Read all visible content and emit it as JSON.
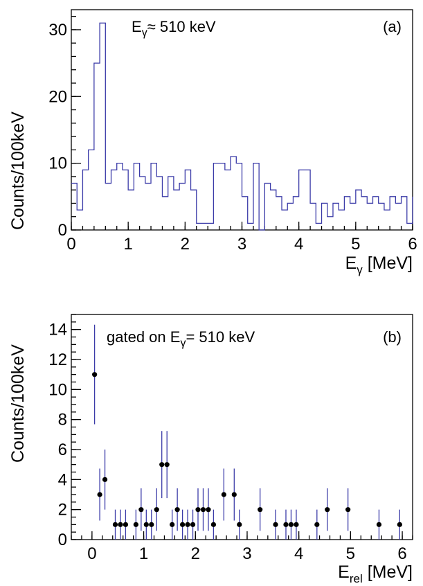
{
  "chart_data": [
    {
      "panel": "a",
      "type": "step",
      "panel_label": "(a)",
      "annotation": {
        "prefix": "E",
        "sub": "γ",
        "suffix": "≈ 510 keV"
      },
      "xlabel": {
        "main": "E",
        "sub": "γ",
        "unit": " [MeV]"
      },
      "ylabel": "Counts/100keV",
      "xlim": [
        0,
        6
      ],
      "ylim": [
        0,
        33
      ],
      "xticks": [
        "0",
        "1",
        "2",
        "3",
        "4",
        "5",
        "6"
      ],
      "yticks": [
        "0",
        "10",
        "20",
        "30"
      ],
      "grid": false,
      "bin_width": 0.1,
      "bin_start": 0.0,
      "values": [
        7,
        3,
        9,
        12,
        25,
        31,
        7,
        9,
        10,
        9,
        6,
        10,
        8,
        7,
        10,
        8,
        5,
        8,
        6,
        7,
        9,
        6,
        1,
        1,
        1,
        10,
        10,
        9,
        11,
        10,
        5,
        1,
        10,
        0,
        7,
        6,
        5,
        3,
        4,
        5,
        9,
        9,
        4,
        1,
        4,
        2,
        4,
        3,
        5,
        4,
        6,
        5,
        4,
        5,
        4,
        3,
        5,
        4,
        5,
        1,
        5
      ]
    },
    {
      "panel": "b",
      "type": "scatter",
      "panel_label": "(b)",
      "annotation": {
        "prefix": "gated on E",
        "sub": "γ",
        "suffix": "= 510 keV"
      },
      "xlabel": {
        "main": "E",
        "sub": "rel",
        "unit": " [MeV]"
      },
      "ylabel": "Counts/100keV",
      "xlim": [
        -0.4,
        6.2
      ],
      "ylim": [
        0,
        15
      ],
      "xticks": [
        "0",
        "1",
        "2",
        "3",
        "4",
        "5",
        "6"
      ],
      "yticks": [
        "0",
        "2",
        "4",
        "6",
        "8",
        "10",
        "12",
        "14"
      ],
      "grid": false,
      "error_bars": "sqrt(counts)",
      "points": [
        {
          "x": 0.05,
          "y": 11
        },
        {
          "x": 0.15,
          "y": 3
        },
        {
          "x": 0.25,
          "y": 4
        },
        {
          "x": 0.45,
          "y": 1
        },
        {
          "x": 0.55,
          "y": 1
        },
        {
          "x": 0.65,
          "y": 1
        },
        {
          "x": 0.85,
          "y": 1
        },
        {
          "x": 0.95,
          "y": 2
        },
        {
          "x": 1.05,
          "y": 1
        },
        {
          "x": 1.15,
          "y": 1
        },
        {
          "x": 1.25,
          "y": 2
        },
        {
          "x": 1.35,
          "y": 5
        },
        {
          "x": 1.45,
          "y": 5
        },
        {
          "x": 1.55,
          "y": 1
        },
        {
          "x": 1.65,
          "y": 2
        },
        {
          "x": 1.75,
          "y": 1
        },
        {
          "x": 1.85,
          "y": 1
        },
        {
          "x": 1.95,
          "y": 1
        },
        {
          "x": 2.05,
          "y": 2
        },
        {
          "x": 2.15,
          "y": 2
        },
        {
          "x": 2.25,
          "y": 2
        },
        {
          "x": 2.35,
          "y": 1
        },
        {
          "x": 2.55,
          "y": 3
        },
        {
          "x": 2.75,
          "y": 3
        },
        {
          "x": 2.85,
          "y": 1
        },
        {
          "x": 3.25,
          "y": 2
        },
        {
          "x": 3.55,
          "y": 1
        },
        {
          "x": 3.75,
          "y": 1
        },
        {
          "x": 3.85,
          "y": 1
        },
        {
          "x": 3.95,
          "y": 1
        },
        {
          "x": 4.35,
          "y": 1
        },
        {
          "x": 4.55,
          "y": 2
        },
        {
          "x": 4.95,
          "y": 2
        },
        {
          "x": 5.55,
          "y": 1
        },
        {
          "x": 5.95,
          "y": 1
        }
      ]
    }
  ]
}
